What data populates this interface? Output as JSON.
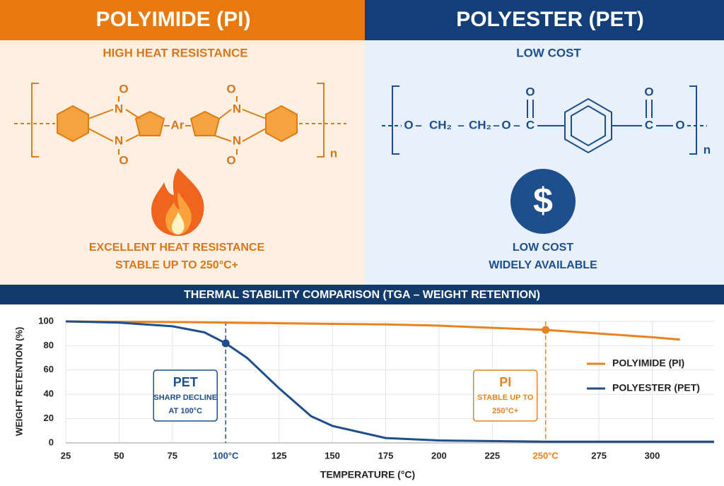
{
  "panels": [
    {
      "title": "POLYIMIDE (PI)",
      "subtitle": "HIGH HEAT RESISTANCE",
      "structure": {
        "atoms": [
          "O",
          "N",
          "Ar"
        ],
        "repeat": "n"
      },
      "features": [
        "EXCELLENT HEAT RESISTANCE",
        "STABLE UP TO 250°C+"
      ]
    },
    {
      "title": "POLYESTER (PET)",
      "subtitle": "LOW COST",
      "structure": {
        "atoms": [
          "O",
          "CH₂",
          "C"
        ],
        "repeat": "n"
      },
      "icon": "$",
      "features": [
        "LOW COST",
        "WIDELY AVAILABLE"
      ]
    }
  ],
  "chart_data": {
    "type": "line",
    "title": "THERMAL STABILITY COMPARISON (TGA – WEIGHT RETENTION)",
    "x_label": "TEMPERATURE (°C)",
    "y_label": "WEIGHT RETENTION (%)",
    "x": [
      25,
      50,
      75,
      90,
      100,
      110,
      125,
      140,
      150,
      175,
      200,
      250,
      300,
      313,
      329
    ],
    "series": [
      {
        "name": "POLYIMIDE (PI)",
        "color": "#e8821e",
        "values": [
          100,
          99.7,
          99.5,
          99.3,
          99,
          98.8,
          98.5,
          98.2,
          98,
          97.5,
          96.5,
          93,
          87,
          85,
          null
        ]
      },
      {
        "name": "POLYESTER (PET)",
        "color": "#1f4e8c",
        "values": [
          100,
          99,
          96,
          91,
          82,
          70,
          45,
          22,
          14,
          4,
          2,
          1,
          1,
          1,
          1
        ]
      }
    ],
    "xlim": [
      25,
      329
    ],
    "ylim": [
      0,
      100
    ],
    "xticks": [
      25,
      50,
      75,
      {
        "value": 100,
        "label": "100°C"
      },
      125,
      150,
      175,
      200,
      225,
      {
        "value": 250,
        "label": "250°C"
      },
      275,
      300
    ],
    "yticks": [
      0,
      20,
      40,
      60,
      80,
      100
    ],
    "grid": true,
    "legend": "right",
    "annotations": [
      {
        "x": 100,
        "color": "#1f4e8c",
        "title": "PET",
        "text": [
          "SHARP DECLINE",
          "AT 100°C"
        ]
      },
      {
        "x": 250,
        "color": "#e8821e",
        "title": "PI",
        "text": [
          "STABLE UP TO",
          "250°C+"
        ]
      }
    ]
  }
}
